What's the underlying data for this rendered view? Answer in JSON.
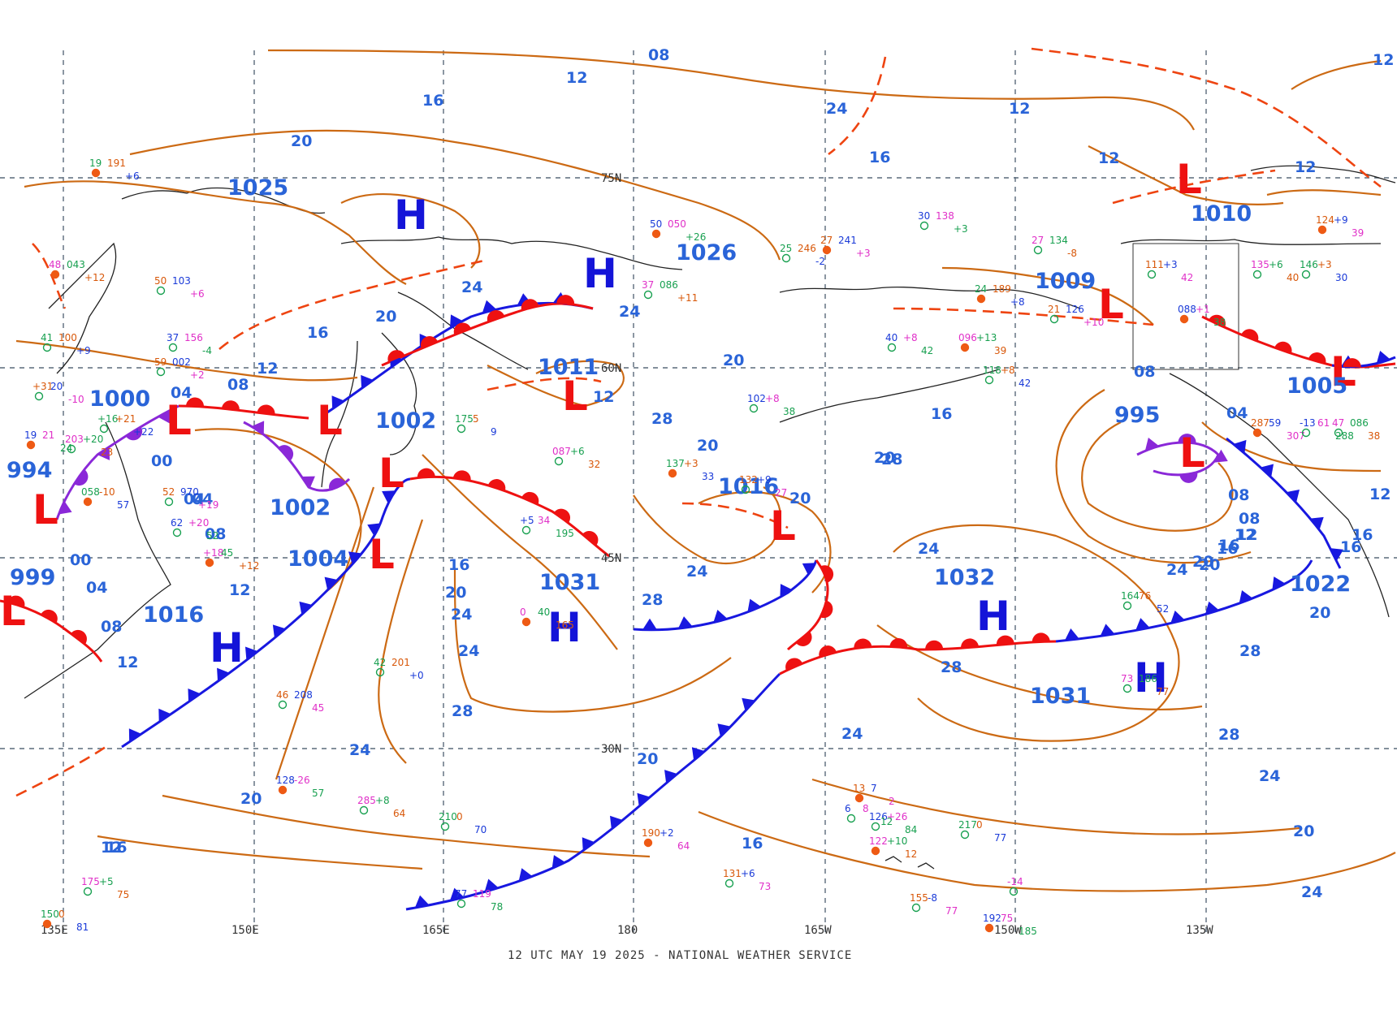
{
  "footer": "12 UTC MAY 19 2025 - NATIONAL WEATHER SERVICE",
  "colors": {
    "isobar": "#cc6a14",
    "isobar_label": "#2a64d8",
    "high": "#1414d8",
    "low": "#ee1111",
    "cold_front": "#1818e0",
    "warm_front": "#ee1111",
    "occluded_front": "#8a28d8",
    "trough": "#ee4411",
    "grid": "#5a6a7a"
  },
  "longitude_labels": [
    "135E",
    "150E",
    "165E",
    "180",
    "165W",
    "150W",
    "135W"
  ],
  "latitude_labels": [
    "75N",
    "60N",
    "45N",
    "30N"
  ],
  "isobar_labels": [
    "16",
    "12",
    "08",
    "12",
    "20",
    "24",
    "20",
    "12",
    "16",
    "08",
    "04",
    "00",
    "04",
    "08",
    "12",
    "24",
    "16",
    "20",
    "24",
    "28",
    "28",
    "24",
    "20",
    "16",
    "20",
    "24",
    "28",
    "20",
    "24",
    "16",
    "20",
    "24",
    "28",
    "28",
    "24",
    "20",
    "16",
    "20",
    "24",
    "12",
    "04",
    "00",
    "04",
    "08",
    "12",
    "16",
    "20",
    "24",
    "28",
    "28",
    "24",
    "20",
    "16",
    "12",
    "08",
    "04",
    "16",
    "12",
    "20",
    "24",
    "12",
    "16",
    "12",
    "08",
    "20",
    "16",
    "12",
    "12",
    "12",
    "08"
  ],
  "pressure_labels": [
    "1025",
    "1026",
    "1009",
    "1010",
    "1005",
    "1000",
    "1011",
    "1002",
    "994",
    "1002",
    "1004",
    "999",
    "1016",
    "1031",
    "1016",
    "1032",
    "1022",
    "995",
    "1031"
  ],
  "high_symbol": "H",
  "low_symbol": "L",
  "stations": [
    "19",
    "191",
    "+6",
    "50",
    "103",
    "+6",
    "37",
    "156",
    "-4",
    "48",
    "043",
    "+12",
    "41",
    "100",
    "+9",
    "59",
    "002",
    "+2",
    "50",
    "050",
    "+26",
    "37",
    "086",
    "+11",
    "25",
    "246",
    "-2",
    "27",
    "241",
    "+3",
    "30",
    "138",
    "+3",
    "27",
    "134",
    "-8",
    "24",
    "189",
    "+8",
    "21",
    "126",
    "+10",
    "40",
    "+8",
    "42",
    "096",
    "+13",
    "39",
    "118",
    "+8",
    "42",
    "111",
    "+3",
    "42",
    "088",
    "+1",
    "38",
    "135",
    "+6",
    "40",
    "146",
    "+3",
    "30",
    "124",
    "+9",
    "39",
    "102",
    "+8",
    "38",
    "087",
    "+6",
    "32",
    "137",
    "+3",
    "33",
    "132",
    "+9",
    "27",
    "+5",
    "34",
    "195",
    "0",
    "40",
    "165",
    "42",
    "201",
    "+0",
    "46",
    "208",
    "45",
    "128",
    "-26",
    "57",
    "285",
    "+8",
    "64",
    "210",
    "0",
    "70",
    "190",
    "+2",
    "64",
    "77",
    "119",
    "78",
    "175",
    "+5",
    "75",
    "150",
    "0",
    "81",
    "131",
    "+6",
    "73",
    "126",
    "+26",
    "84",
    "122",
    "+10",
    "12",
    "217",
    "0",
    "77",
    "155",
    "-8",
    "77",
    "192",
    "75",
    "185",
    "73",
    "186",
    "77",
    "164",
    "76",
    "52",
    "287",
    "59",
    "307",
    "-13",
    "61",
    "288",
    "47",
    "086",
    "38",
    "058",
    "-10",
    "57",
    "52",
    "970",
    "+19",
    "62",
    "+20",
    "52",
    "+18",
    "45",
    "+12",
    "+16",
    "+21",
    "+22",
    "+31",
    "20",
    "-10",
    "19",
    "21",
    "24",
    "203",
    "+20",
    "23",
    "175",
    "5",
    "9",
    "13",
    "7",
    "2",
    "6",
    "8",
    "12",
    "-14"
  ]
}
